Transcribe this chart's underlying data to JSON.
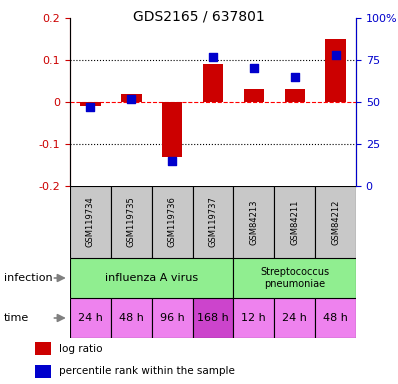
{
  "title": "GDS2165 / 637801",
  "samples": [
    "GSM119734",
    "GSM119735",
    "GSM119736",
    "GSM119737",
    "GSM84213",
    "GSM84211",
    "GSM84212"
  ],
  "log_ratio": [
    -0.01,
    0.02,
    -0.13,
    0.09,
    0.03,
    0.03,
    0.15
  ],
  "percentile_rank": [
    47,
    52,
    15,
    77,
    70,
    65,
    78
  ],
  "ylim": [
    -0.2,
    0.2
  ],
  "infection_groups": [
    {
      "label": "influenza A virus",
      "start": 0,
      "end": 4,
      "color": "#90EE90"
    },
    {
      "label": "Streptococcus\npneumoniae",
      "start": 4,
      "end": 7,
      "color": "#90EE90"
    }
  ],
  "time_labels": [
    "24 h",
    "48 h",
    "96 h",
    "168 h",
    "12 h",
    "24 h",
    "48 h"
  ],
  "time_colors": [
    "#EE82EE",
    "#EE82EE",
    "#EE82EE",
    "#CC44CC",
    "#EE82EE",
    "#EE82EE",
    "#EE82EE"
  ],
  "bar_color": "#CC0000",
  "dot_color": "#0000CC",
  "left_tick_color": "#CC0000",
  "right_tick_color": "#0000CC",
  "sample_box_color": "#C8C8C8",
  "bg_color": "#FFFFFF",
  "left_yticks": [
    -0.2,
    -0.1,
    0.0,
    0.1,
    0.2
  ],
  "left_yticklabels": [
    "-0.2",
    "-0.1",
    "0",
    "0.1",
    "0.2"
  ],
  "right_yticklabels": [
    "0",
    "25",
    "50",
    "75",
    "100%"
  ]
}
